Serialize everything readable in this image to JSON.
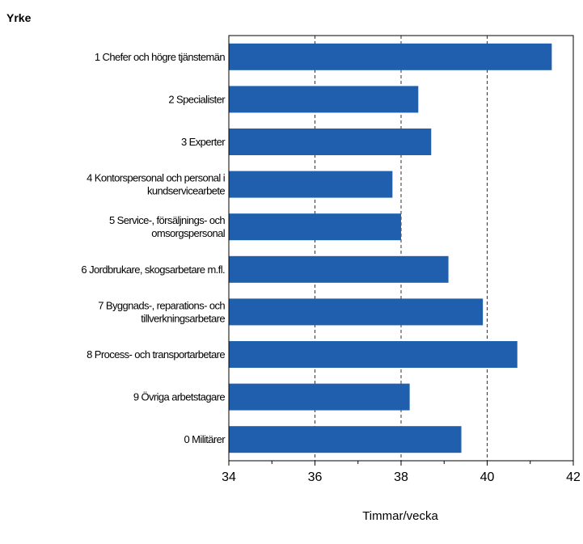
{
  "chart_data": {
    "type": "bar",
    "orientation": "horizontal",
    "category_axis_title": "Yrke",
    "xlabel": "Timmar/vecka",
    "categories": [
      [
        "1 Chefer och högre tjänstemän"
      ],
      [
        "2 Specialister"
      ],
      [
        "3 Experter"
      ],
      [
        "4 Kontorspersonal och personal i",
        "kundservicearbete"
      ],
      [
        "5 Service-, försäljnings- och",
        "omsorgspersonal"
      ],
      [
        "6 Jordbrukare, skogsarbetare m.fl."
      ],
      [
        "7 Byggnads-, reparations- och",
        "tillverkningsarbetare"
      ],
      [
        "8 Process- och transportarbetare"
      ],
      [
        "9 Övriga arbetstagare"
      ],
      [
        "0 Militärer"
      ]
    ],
    "values": [
      41.5,
      38.4,
      38.7,
      37.8,
      38.0,
      39.1,
      39.9,
      40.7,
      38.2,
      39.4
    ],
    "xlim": [
      34,
      42
    ],
    "xticks": [
      34,
      36,
      38,
      40,
      42
    ],
    "grid": "vertical dashed at major ticks",
    "bar_color": "#1f5fae",
    "grid_color": "#333333"
  }
}
